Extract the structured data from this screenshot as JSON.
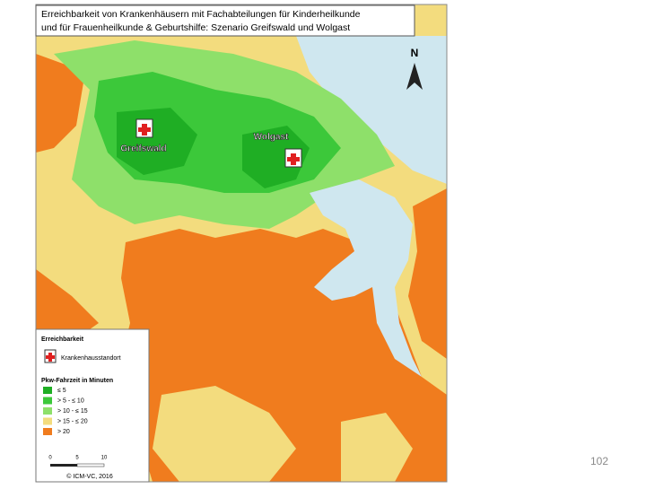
{
  "header": {
    "title_line1": "Erreichbarkeit von Krankenhäusern mit Fachabteilungen für Kinderheilkunde",
    "title_line2": "und für Frauenheilkunde & Geburtshilfe: Szenario Greifswald und Wolgast"
  },
  "map": {
    "north": "N",
    "places": [
      "Greifswald",
      "Wolgast"
    ]
  },
  "legend": {
    "title": "Erreichbarkeit",
    "site": "Krankenhausstandort",
    "subtitle": "Pkw-Fahrzeit in Minuten",
    "items": [
      {
        "label": "≤ 5",
        "color": "#1fae24"
      },
      {
        "label": "> 5 - ≤ 10",
        "color": "#3cc83a"
      },
      {
        "label": "> 10 - ≤ 15",
        "color": "#8ee06a"
      },
      {
        "label": "> 15 - ≤ 20",
        "color": "#f3dc7e"
      },
      {
        "label": "> 20",
        "color": "#f07c1e"
      }
    ],
    "scale": [
      0,
      5,
      10
    ],
    "credit": "© ICM-VC, 2016"
  },
  "page_number": 102
}
